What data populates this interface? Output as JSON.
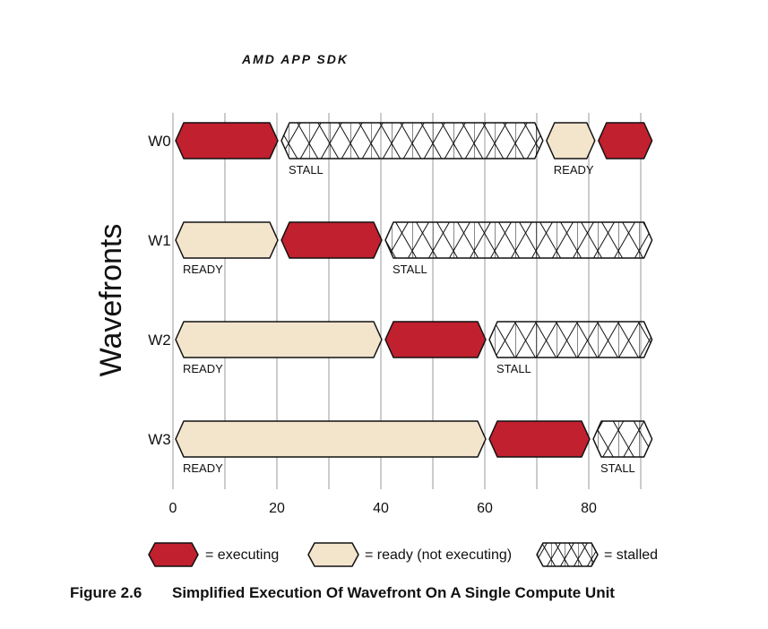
{
  "header": {
    "title": "AMD APP SDK"
  },
  "caption": {
    "number": "Figure 2.6",
    "text": "Simplified Execution Of Wavefront On A Single Compute Unit"
  },
  "colors": {
    "executing": "#c1202f",
    "ready": "#f3e4cc",
    "stalled": "#ffffff",
    "outline": "#111111",
    "grid": "#999999"
  },
  "chart_data": {
    "type": "gantt",
    "xlabel": "",
    "ylabel": "Wavefronts",
    "xlim": [
      0,
      92
    ],
    "x_ticks": [
      0,
      20,
      40,
      60,
      80
    ],
    "grid_lines": [
      0,
      10,
      20,
      30,
      40,
      50,
      60,
      70,
      80,
      90
    ],
    "rows": [
      {
        "name": "W0",
        "segments": [
          {
            "state": "executing",
            "start": 0,
            "end": 20,
            "label": ""
          },
          {
            "state": "stalled",
            "start": 20,
            "end": 71,
            "label": "STALL"
          },
          {
            "state": "ready",
            "start": 71,
            "end": 81,
            "label": "READY"
          },
          {
            "state": "executing",
            "start": 81,
            "end": 92,
            "label": ""
          }
        ]
      },
      {
        "name": "W1",
        "segments": [
          {
            "state": "ready",
            "start": 0,
            "end": 20,
            "label": "READY"
          },
          {
            "state": "executing",
            "start": 20,
            "end": 40,
            "label": ""
          },
          {
            "state": "stalled",
            "start": 40,
            "end": 92,
            "label": "STALL"
          }
        ]
      },
      {
        "name": "W2",
        "segments": [
          {
            "state": "ready",
            "start": 0,
            "end": 40,
            "label": "READY"
          },
          {
            "state": "executing",
            "start": 40,
            "end": 60,
            "label": ""
          },
          {
            "state": "stalled",
            "start": 60,
            "end": 92,
            "label": "STALL"
          }
        ]
      },
      {
        "name": "W3",
        "segments": [
          {
            "state": "ready",
            "start": 0,
            "end": 60,
            "label": "READY"
          },
          {
            "state": "executing",
            "start": 60,
            "end": 80,
            "label": ""
          },
          {
            "state": "stalled",
            "start": 80,
            "end": 92,
            "label": "STALL"
          }
        ]
      }
    ]
  },
  "legend": {
    "items": [
      {
        "state": "executing",
        "label": "= executing"
      },
      {
        "state": "ready",
        "label": "= ready (not executing)"
      },
      {
        "state": "stalled",
        "label": "= stalled"
      }
    ]
  }
}
